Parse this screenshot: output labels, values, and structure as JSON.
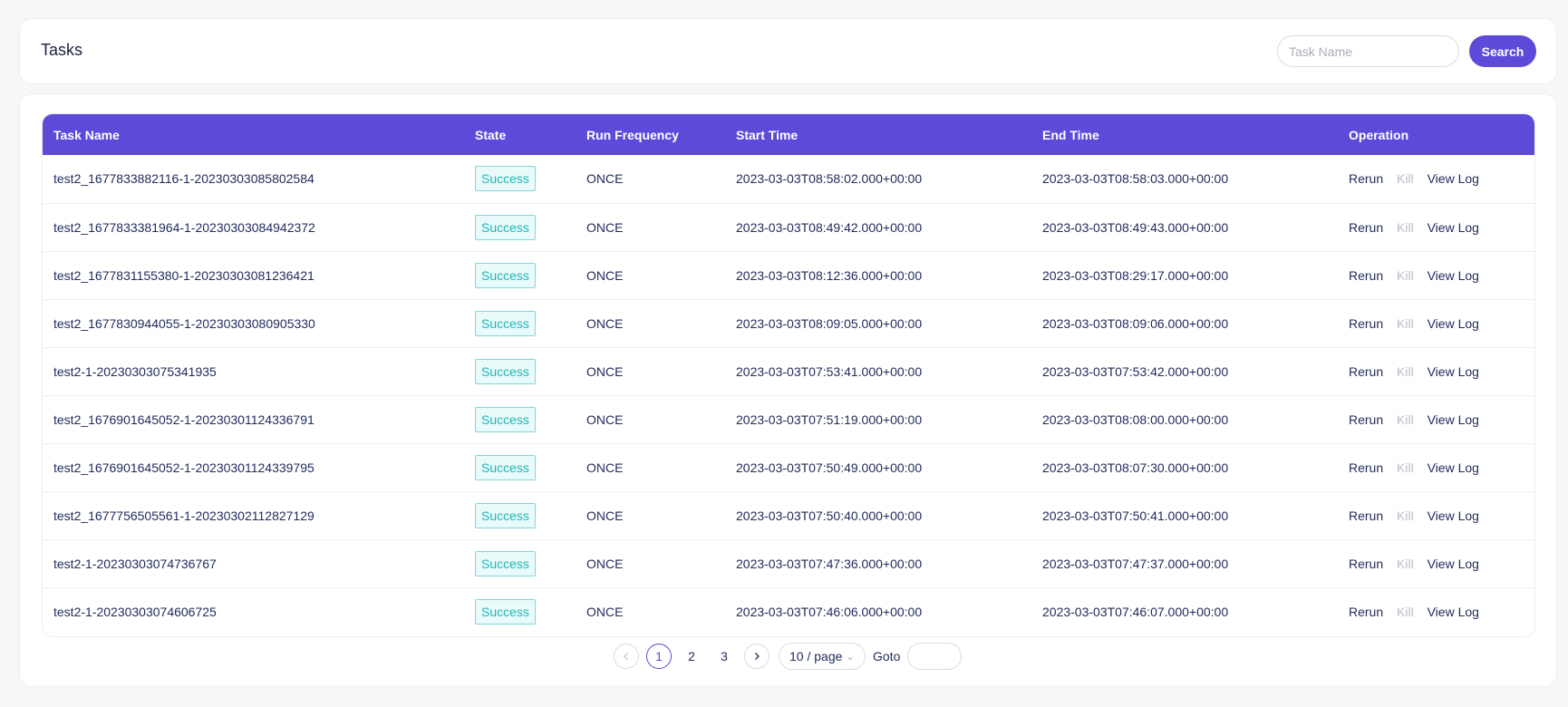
{
  "header": {
    "title": "Tasks",
    "search_placeholder": "Task Name",
    "search_label": "Search"
  },
  "table": {
    "columns": [
      "Task Name",
      "State",
      "Run Frequency",
      "Start Time",
      "End Time",
      "Operation"
    ],
    "operations": {
      "rerun": "Rerun",
      "kill": "Kill",
      "view_log": "View Log"
    },
    "rows": [
      {
        "name": "test2_1677833882116-1-20230303085802584",
        "state": "Success",
        "frequency": "ONCE",
        "start": "2023-03-03T08:58:02.000+00:00",
        "end": "2023-03-03T08:58:03.000+00:00"
      },
      {
        "name": "test2_1677833381964-1-20230303084942372",
        "state": "Success",
        "frequency": "ONCE",
        "start": "2023-03-03T08:49:42.000+00:00",
        "end": "2023-03-03T08:49:43.000+00:00"
      },
      {
        "name": "test2_1677831155380-1-20230303081236421",
        "state": "Success",
        "frequency": "ONCE",
        "start": "2023-03-03T08:12:36.000+00:00",
        "end": "2023-03-03T08:29:17.000+00:00"
      },
      {
        "name": "test2_1677830944055-1-20230303080905330",
        "state": "Success",
        "frequency": "ONCE",
        "start": "2023-03-03T08:09:05.000+00:00",
        "end": "2023-03-03T08:09:06.000+00:00"
      },
      {
        "name": "test2-1-20230303075341935",
        "state": "Success",
        "frequency": "ONCE",
        "start": "2023-03-03T07:53:41.000+00:00",
        "end": "2023-03-03T07:53:42.000+00:00"
      },
      {
        "name": "test2_1676901645052-1-20230301124336791",
        "state": "Success",
        "frequency": "ONCE",
        "start": "2023-03-03T07:51:19.000+00:00",
        "end": "2023-03-03T08:08:00.000+00:00"
      },
      {
        "name": "test2_1676901645052-1-20230301124339795",
        "state": "Success",
        "frequency": "ONCE",
        "start": "2023-03-03T07:50:49.000+00:00",
        "end": "2023-03-03T08:07:30.000+00:00"
      },
      {
        "name": "test2_1677756505561-1-20230302112827129",
        "state": "Success",
        "frequency": "ONCE",
        "start": "2023-03-03T07:50:40.000+00:00",
        "end": "2023-03-03T07:50:41.000+00:00"
      },
      {
        "name": "test2-1-20230303074736767",
        "state": "Success",
        "frequency": "ONCE",
        "start": "2023-03-03T07:47:36.000+00:00",
        "end": "2023-03-03T07:47:37.000+00:00"
      },
      {
        "name": "test2-1-20230303074606725",
        "state": "Success",
        "frequency": "ONCE",
        "start": "2023-03-03T07:46:06.000+00:00",
        "end": "2023-03-03T07:46:07.000+00:00"
      }
    ]
  },
  "pagination": {
    "prev_icon": "chevron-left-icon",
    "next_icon": "chevron-right-icon",
    "pages": [
      "1",
      "2",
      "3"
    ],
    "current": "1",
    "page_size": "10 / page",
    "goto_label": "Goto"
  },
  "colors": {
    "accent": "#5d4ad9",
    "success_text": "#1fb8b8",
    "success_bg": "#e8fafa"
  }
}
